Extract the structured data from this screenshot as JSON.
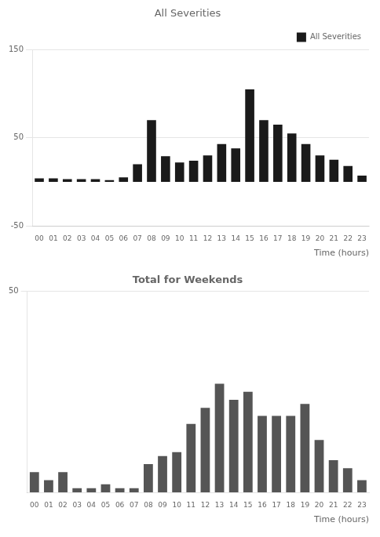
{
  "chart_data": [
    {
      "type": "bar",
      "title": "All Severities",
      "categories": [
        "00",
        "01",
        "02",
        "03",
        "04",
        "05",
        "06",
        "07",
        "08",
        "09",
        "10",
        "11",
        "12",
        "13",
        "14",
        "15",
        "16",
        "17",
        "18",
        "19",
        "20",
        "21",
        "22",
        "23"
      ],
      "series": [
        {
          "name": "All Severities",
          "color": "#1a1a1a",
          "values": [
            4,
            4,
            3,
            3,
            3,
            2,
            5,
            20,
            70,
            29,
            22,
            24,
            30,
            43,
            38,
            105,
            70,
            65,
            55,
            43,
            30,
            25,
            18,
            7
          ]
        }
      ],
      "xlabel": "Time (hours)",
      "ylim": [
        -50,
        150
      ],
      "yticks": [
        -50,
        50,
        150
      ],
      "grid": true,
      "legend": "upper right"
    },
    {
      "type": "bar",
      "title": "Total for Weekends",
      "categories": [
        "00",
        "01",
        "02",
        "03",
        "04",
        "05",
        "06",
        "07",
        "08",
        "09",
        "10",
        "11",
        "12",
        "13",
        "14",
        "15",
        "16",
        "17",
        "18",
        "19",
        "20",
        "21",
        "22",
        "23"
      ],
      "series": [
        {
          "name": "Total for Weekends",
          "color": "#555555",
          "values": [
            5,
            3,
            5,
            1,
            1,
            2,
            1,
            1,
            7,
            9,
            10,
            17,
            21,
            27,
            23,
            25,
            19,
            19,
            19,
            22,
            13,
            8,
            6,
            3
          ]
        }
      ],
      "xlabel": "Time (hours)",
      "ylim": [
        0,
        50
      ],
      "yticks": [
        50
      ],
      "grid": true
    }
  ]
}
